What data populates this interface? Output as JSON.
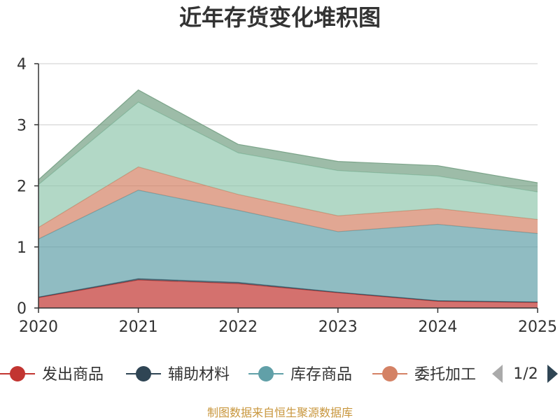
{
  "chart_data": {
    "type": "area",
    "title": "近年存货变化堆积图",
    "ylim": [
      0,
      4
    ],
    "yticks": [
      "0",
      "1",
      "2",
      "3",
      "4"
    ],
    "categories": [
      "2020",
      "2021",
      "2022",
      "2023",
      "2024",
      "2025"
    ],
    "grid": true,
    "stacked": true,
    "series": [
      {
        "name": "发出商品",
        "color": "#c23531",
        "values": [
          0.17,
          0.46,
          0.4,
          0.25,
          0.11,
          0.09
        ]
      },
      {
        "name": "辅助材料",
        "color": "#2f4554",
        "values": [
          0.01,
          0.02,
          0.02,
          0.01,
          0.01,
          0.01
        ]
      },
      {
        "name": "库存商品",
        "color": "#61a0a8",
        "values": [
          0.95,
          1.45,
          1.18,
          0.99,
          1.25,
          1.12
        ]
      },
      {
        "name": "委托加工",
        "color": "#d48265",
        "values": [
          0.19,
          0.38,
          0.26,
          0.26,
          0.26,
          0.23
        ]
      },
      {
        "name": "",
        "color": "#91c7ae",
        "values": [
          0.7,
          1.06,
          0.68,
          0.74,
          0.53,
          0.45
        ]
      },
      {
        "name": "",
        "color": "#749f83",
        "values": [
          0.08,
          0.2,
          0.14,
          0.15,
          0.17,
          0.15
        ]
      }
    ],
    "legend": {
      "position": "bottom",
      "page_indicator": "1/2"
    },
    "source": "制图数据来自恒生聚源数据库"
  }
}
